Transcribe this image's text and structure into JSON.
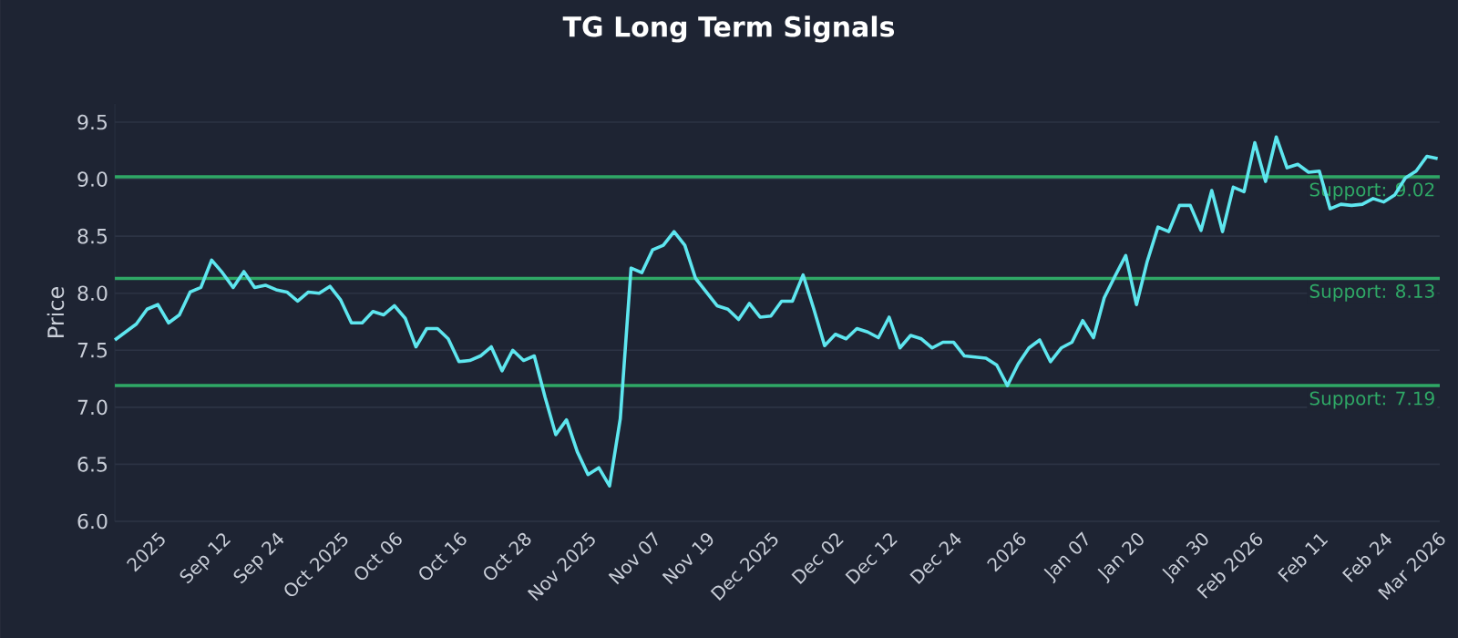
{
  "chart_data": {
    "type": "line",
    "title": "TG Long Term Signals",
    "ylabel": "Price",
    "categories": [
      null,
      null,
      null,
      null,
      "2025",
      null,
      null,
      null,
      null,
      null,
      "Sep 12",
      null,
      null,
      null,
      null,
      "Sep 24",
      null,
      null,
      null,
      null,
      null,
      "Oct 2025",
      null,
      null,
      null,
      null,
      "Oct 06",
      null,
      null,
      null,
      null,
      null,
      "Oct 16",
      null,
      null,
      null,
      null,
      null,
      "Oct 28",
      null,
      null,
      null,
      null,
      null,
      "Nov 2025",
      null,
      null,
      null,
      null,
      null,
      "Nov 07",
      null,
      null,
      null,
      null,
      "Nov 19",
      null,
      null,
      null,
      null,
      null,
      "Dec 2025",
      null,
      null,
      null,
      null,
      null,
      "Dec 02",
      null,
      null,
      null,
      null,
      "Dec 12",
      null,
      null,
      null,
      null,
      null,
      "Dec 24",
      null,
      null,
      null,
      null,
      null,
      "2026",
      null,
      null,
      null,
      null,
      null,
      "Jan 07",
      null,
      null,
      null,
      null,
      "Jan 20",
      null,
      null,
      null,
      null,
      null,
      "Jan 30",
      null,
      null,
      null,
      null,
      "Feb 2026",
      null,
      null,
      null,
      null,
      null,
      "Feb 11",
      null,
      null,
      null,
      null,
      null,
      "Feb 24",
      null,
      null,
      null,
      null,
      "Mar 2026"
    ],
    "series": [
      {
        "color": "#5ee6ef",
        "values": [
          7.59,
          7.66,
          7.73,
          7.86,
          7.9,
          7.74,
          7.81,
          8.01,
          8.05,
          8.29,
          8.18,
          8.05,
          8.19,
          8.05,
          8.07,
          8.03,
          8.01,
          7.93,
          8.01,
          8.0,
          8.06,
          7.94,
          7.74,
          7.74,
          7.84,
          7.81,
          7.89,
          7.78,
          7.53,
          7.69,
          7.69,
          7.6,
          7.4,
          7.41,
          7.45,
          7.53,
          7.32,
          7.5,
          7.41,
          7.45,
          7.09,
          6.76,
          6.89,
          6.61,
          6.41,
          6.47,
          6.31,
          6.9,
          8.22,
          8.18,
          8.38,
          8.42,
          8.54,
          8.42,
          8.13,
          8.01,
          7.89,
          7.86,
          7.77,
          7.91,
          7.79,
          7.8,
          7.93,
          7.93,
          8.16,
          7.86,
          7.54,
          7.64,
          7.6,
          7.69,
          7.66,
          7.61,
          7.79,
          7.52,
          7.63,
          7.6,
          7.52,
          7.57,
          7.57,
          7.45,
          7.44,
          7.43,
          7.37,
          7.19,
          7.38,
          7.52,
          7.59,
          7.4,
          7.52,
          7.57,
          7.76,
          7.61,
          7.96,
          8.15,
          8.33,
          7.9,
          8.28,
          8.58,
          8.54,
          8.77,
          8.77,
          8.55,
          8.9,
          8.54,
          8.93,
          8.89,
          9.32,
          8.98,
          9.37,
          9.1,
          9.13,
          9.06,
          9.07,
          8.74,
          8.78,
          8.77,
          8.78,
          8.83,
          8.8,
          8.86,
          9.01,
          9.07,
          9.2,
          9.18
        ]
      }
    ],
    "ylim": [
      6.0,
      9.66
    ],
    "yticks": [
      {
        "value": 6,
        "label": "6.0"
      },
      6.5,
      {
        "value": 7,
        "label": "7.0"
      },
      7.5,
      {
        "value": 8,
        "label": "8.0"
      },
      8.5,
      {
        "value": 9,
        "label": "9.0"
      },
      9.5
    ],
    "grid": "y",
    "ref_lines": [
      {
        "axis": "y",
        "value": 9.02,
        "label": "Support: 9.02",
        "color": "#2fa866"
      },
      {
        "axis": "y",
        "value": 8.13,
        "label": "Support: 8.13",
        "color": "#2fa866"
      },
      {
        "axis": "y",
        "value": 7.19,
        "label": "Support: 7.19",
        "color": "#2fa866"
      }
    ],
    "line_style": "solid",
    "marker": "none"
  }
}
